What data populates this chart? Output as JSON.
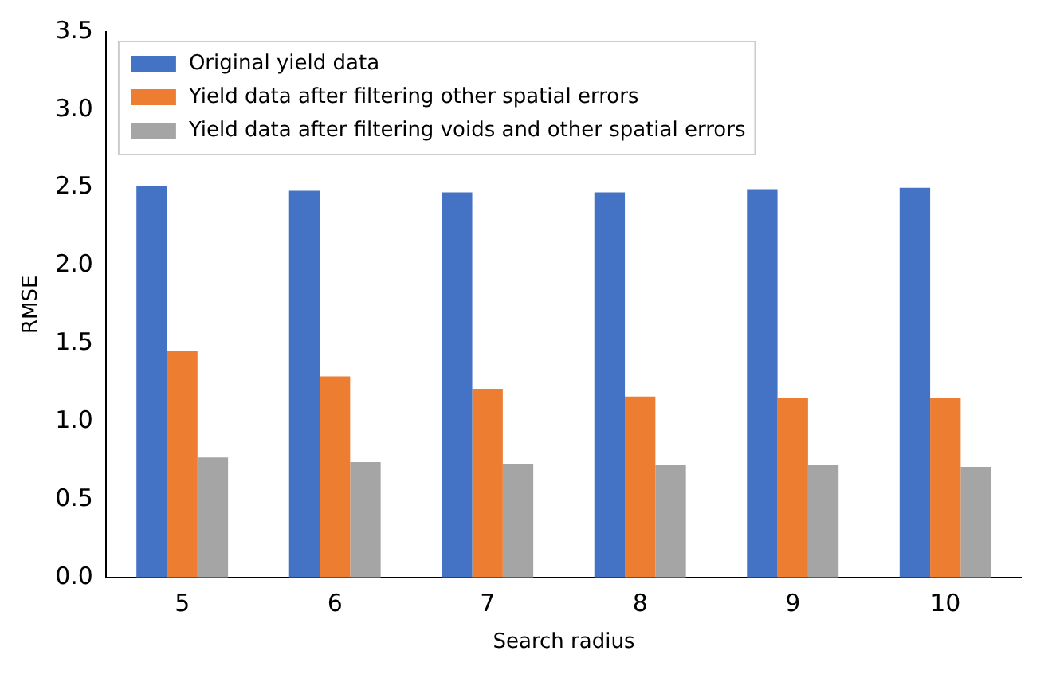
{
  "chart_data": {
    "type": "bar",
    "xlabel": "Search radius",
    "ylabel": "RMSE",
    "categories": [
      "5",
      "6",
      "7",
      "8",
      "9",
      "10"
    ],
    "series": [
      {
        "name": "Original yield data",
        "color": "#4472c4",
        "values": [
          2.51,
          2.48,
          2.47,
          2.47,
          2.49,
          2.5
        ]
      },
      {
        "name": "Yield data after filtering other spatial errors",
        "color": "#ed7d31",
        "values": [
          1.45,
          1.29,
          1.21,
          1.16,
          1.15,
          1.15
        ]
      },
      {
        "name": "Yield data after filtering voids and other spatial errors",
        "color": "#a5a5a5",
        "values": [
          0.77,
          0.74,
          0.73,
          0.72,
          0.72,
          0.71
        ]
      }
    ],
    "ylim": [
      0,
      3.5
    ],
    "yticks": [
      {
        "value": 0,
        "label": "0.0"
      },
      0.5,
      {
        "value": 1,
        "label": "1.0"
      },
      1.5,
      {
        "value": 2,
        "label": "2.0"
      },
      2.5,
      {
        "value": 3,
        "label": "3.0"
      },
      3.5
    ],
    "grid": false,
    "legend": "top left"
  }
}
